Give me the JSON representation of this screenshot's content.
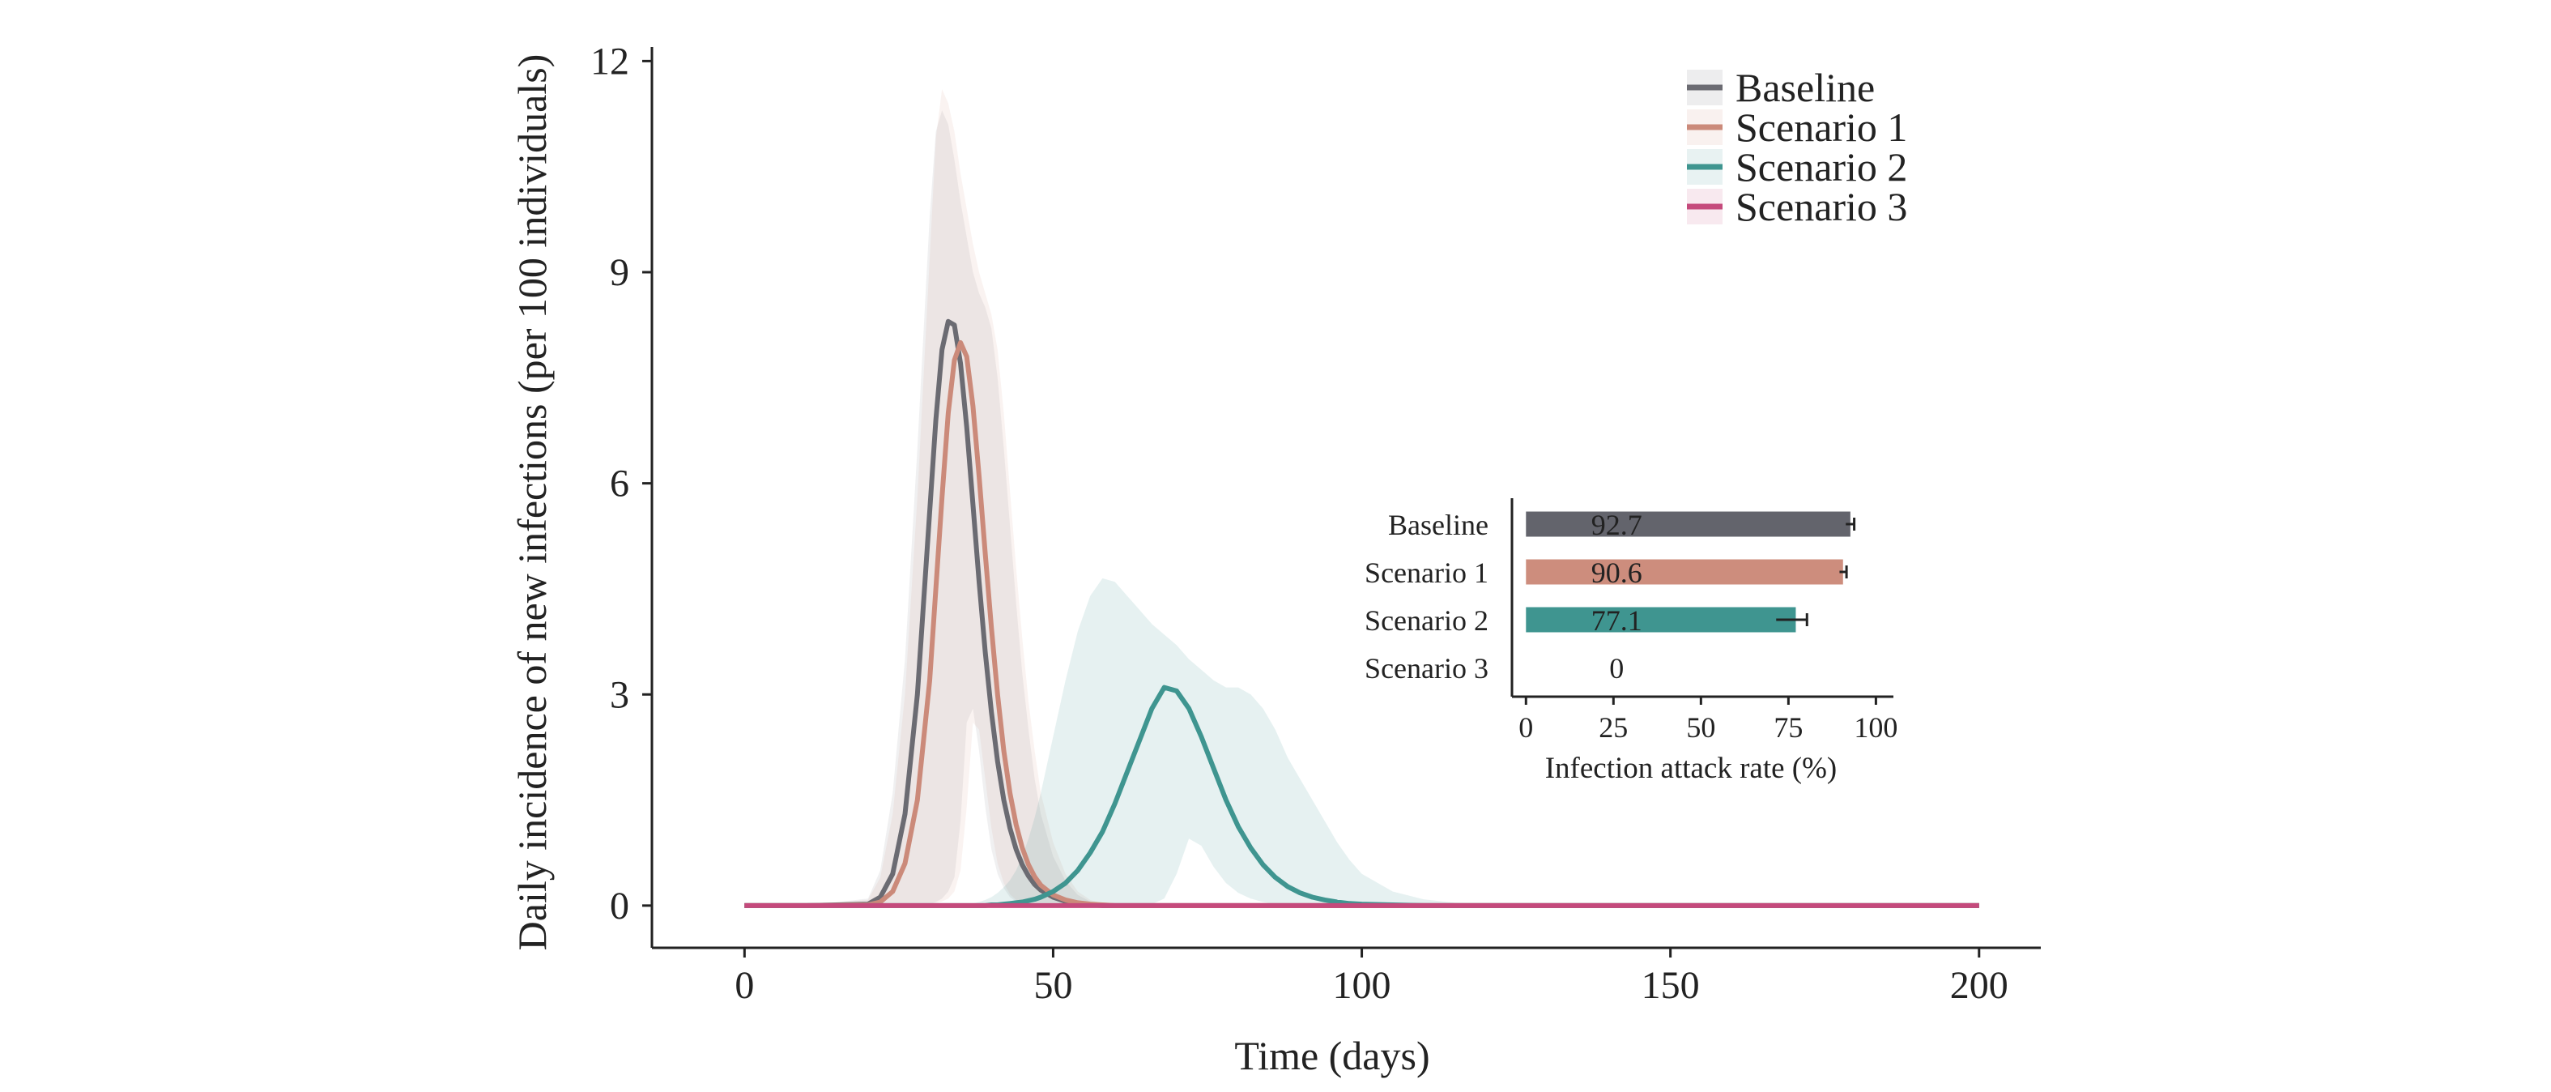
{
  "chart_data": [
    {
      "type": "line",
      "title": "",
      "xlabel": "Time (days)",
      "ylabel": "Daily incidence of new infections (per 100 individuals)",
      "xlim": [
        -15,
        210
      ],
      "ylim": [
        -0.6,
        12.2
      ],
      "xticks": [
        0,
        50,
        100,
        150,
        200
      ],
      "yticks": [
        0,
        3,
        6,
        9,
        12
      ],
      "grid": false,
      "legend": "top-right",
      "x": [
        0,
        10,
        20,
        22,
        24,
        26,
        28,
        30,
        31,
        32,
        33,
        34,
        35,
        36,
        37,
        38,
        39,
        40,
        41,
        42,
        43,
        44,
        45,
        46,
        47,
        48,
        50,
        52,
        54,
        56,
        58,
        60,
        62,
        64,
        66,
        68,
        70,
        72,
        74,
        76,
        78,
        80,
        82,
        84,
        86,
        88,
        90,
        92,
        94,
        96,
        98,
        100,
        105,
        110,
        115,
        120,
        130,
        140,
        160,
        180,
        200
      ],
      "series": [
        {
          "name": "Baseline",
          "color": "#6b6b72",
          "values": [
            0,
            0,
            0.02,
            0.12,
            0.45,
            1.3,
            3.0,
            5.6,
            6.9,
            7.9,
            8.3,
            8.25,
            7.7,
            6.8,
            5.7,
            4.6,
            3.6,
            2.75,
            2.05,
            1.5,
            1.1,
            0.8,
            0.58,
            0.42,
            0.3,
            0.22,
            0.12,
            0.06,
            0.03,
            0.01,
            0,
            0,
            0,
            0,
            0,
            0,
            0,
            0,
            0,
            0,
            0,
            0,
            0,
            0,
            0,
            0,
            0,
            0,
            0,
            0,
            0,
            0,
            0,
            0,
            0,
            0,
            0,
            0,
            0,
            0,
            0
          ],
          "band_upper": [
            0,
            0,
            0.1,
            0.5,
            1.6,
            3.5,
            6.5,
            9.8,
            11.0,
            11.3,
            11.1,
            10.6,
            10.0,
            9.5,
            9.0,
            8.7,
            8.5,
            8.2,
            7.5,
            6.5,
            5.4,
            4.3,
            3.3,
            2.5,
            1.8,
            1.3,
            0.7,
            0.35,
            0.15,
            0.06,
            0.02,
            0,
            0,
            0,
            0,
            0,
            0,
            0,
            0,
            0,
            0,
            0,
            0,
            0,
            0,
            0,
            0,
            0,
            0,
            0,
            0,
            0,
            0,
            0,
            0,
            0,
            0,
            0,
            0,
            0,
            0
          ],
          "band_lower": [
            0,
            0,
            0,
            0,
            0,
            0,
            0,
            0.02,
            0.05,
            0.1,
            0.2,
            0.4,
            1.2,
            2.6,
            2.8,
            2.2,
            1.4,
            0.8,
            0.45,
            0.25,
            0.12,
            0.06,
            0.03,
            0.01,
            0,
            0,
            0,
            0,
            0,
            0,
            0,
            0,
            0,
            0,
            0,
            0,
            0,
            0,
            0,
            0,
            0,
            0,
            0,
            0,
            0,
            0,
            0,
            0,
            0,
            0,
            0,
            0,
            0,
            0,
            0,
            0,
            0,
            0,
            0,
            0,
            0
          ]
        },
        {
          "name": "Scenario 1",
          "color": "#cb8a7a",
          "values": [
            0,
            0,
            0.01,
            0.05,
            0.2,
            0.6,
            1.5,
            3.2,
            4.5,
            5.8,
            7.0,
            7.75,
            8.0,
            7.8,
            7.1,
            6.1,
            5.0,
            3.95,
            3.0,
            2.2,
            1.6,
            1.15,
            0.82,
            0.58,
            0.41,
            0.29,
            0.15,
            0.08,
            0.04,
            0.02,
            0.01,
            0,
            0,
            0,
            0,
            0,
            0,
            0,
            0,
            0,
            0,
            0,
            0,
            0,
            0,
            0,
            0,
            0,
            0,
            0,
            0,
            0,
            0,
            0,
            0,
            0,
            0,
            0,
            0,
            0,
            0
          ],
          "band_upper": [
            0,
            0,
            0.08,
            0.4,
            1.3,
            3.0,
            5.8,
            9.2,
            10.9,
            11.6,
            11.4,
            11.0,
            10.4,
            9.9,
            9.4,
            9.0,
            8.7,
            8.4,
            7.9,
            7.0,
            5.9,
            4.8,
            3.8,
            2.9,
            2.2,
            1.6,
            0.9,
            0.45,
            0.2,
            0.08,
            0.03,
            0.01,
            0,
            0,
            0,
            0,
            0,
            0,
            0,
            0,
            0,
            0,
            0,
            0,
            0,
            0,
            0,
            0,
            0,
            0,
            0,
            0,
            0,
            0,
            0,
            0,
            0,
            0,
            0,
            0,
            0
          ],
          "band_lower": [
            0,
            0,
            0,
            0,
            0,
            0,
            0,
            0.01,
            0.03,
            0.06,
            0.1,
            0.2,
            0.5,
            1.4,
            2.6,
            2.5,
            1.8,
            1.1,
            0.6,
            0.32,
            0.16,
            0.08,
            0.04,
            0.02,
            0.01,
            0,
            0,
            0,
            0,
            0,
            0,
            0,
            0,
            0,
            0,
            0,
            0,
            0,
            0,
            0,
            0,
            0,
            0,
            0,
            0,
            0,
            0,
            0,
            0,
            0,
            0,
            0,
            0,
            0,
            0,
            0,
            0,
            0,
            0,
            0,
            0
          ]
        },
        {
          "name": "Scenario 2",
          "color": "#3f9590",
          "values": [
            0,
            0,
            0,
            0,
            0,
            0,
            0,
            0,
            0,
            0,
            0,
            0,
            0,
            0,
            0,
            0,
            0,
            0.01,
            0.01,
            0.02,
            0.03,
            0.04,
            0.05,
            0.07,
            0.09,
            0.12,
            0.2,
            0.32,
            0.5,
            0.75,
            1.05,
            1.45,
            1.9,
            2.35,
            2.8,
            3.1,
            3.05,
            2.8,
            2.4,
            1.95,
            1.5,
            1.12,
            0.82,
            0.58,
            0.4,
            0.27,
            0.18,
            0.12,
            0.08,
            0.05,
            0.03,
            0.02,
            0.01,
            0,
            0,
            0,
            0,
            0,
            0,
            0,
            0
          ],
          "band_upper": [
            0,
            0,
            0,
            0,
            0,
            0,
            0,
            0,
            0,
            0,
            0,
            0,
            0.01,
            0.02,
            0.03,
            0.05,
            0.08,
            0.12,
            0.18,
            0.26,
            0.36,
            0.5,
            0.7,
            0.95,
            1.25,
            1.6,
            2.4,
            3.2,
            3.9,
            4.4,
            4.65,
            4.6,
            4.4,
            4.2,
            4.0,
            3.85,
            3.7,
            3.5,
            3.35,
            3.2,
            3.1,
            3.1,
            3.0,
            2.8,
            2.5,
            2.1,
            1.8,
            1.5,
            1.2,
            0.9,
            0.65,
            0.45,
            0.2,
            0.09,
            0.04,
            0.02,
            0.01,
            0,
            0,
            0,
            0
          ],
          "band_lower": [
            0,
            0,
            0,
            0,
            0,
            0,
            0,
            0,
            0,
            0,
            0,
            0,
            0,
            0,
            0,
            0,
            0,
            0,
            0,
            0,
            0,
            0,
            0,
            0,
            0,
            0,
            0,
            0,
            0,
            0,
            0,
            0,
            0,
            0,
            0.02,
            0.1,
            0.45,
            0.95,
            0.85,
            0.55,
            0.32,
            0.18,
            0.1,
            0.05,
            0.02,
            0.01,
            0,
            0,
            0,
            0,
            0,
            0,
            0,
            0,
            0,
            0,
            0,
            0,
            0,
            0,
            0
          ]
        },
        {
          "name": "Scenario 3",
          "color": "#c54a7c",
          "values": [
            0,
            0,
            0,
            0,
            0,
            0,
            0,
            0,
            0,
            0,
            0,
            0,
            0,
            0,
            0,
            0,
            0,
            0,
            0,
            0,
            0,
            0,
            0,
            0,
            0,
            0,
            0,
            0,
            0,
            0,
            0,
            0,
            0,
            0,
            0,
            0,
            0,
            0,
            0,
            0,
            0,
            0,
            0,
            0,
            0,
            0,
            0,
            0,
            0,
            0,
            0,
            0,
            0,
            0,
            0,
            0,
            0,
            0,
            0,
            0,
            0
          ]
        }
      ]
    },
    {
      "type": "bar",
      "orientation": "horizontal",
      "title": "",
      "xlabel": "Infection attack rate (%)",
      "ylabel": "",
      "xlim": [
        -4,
        105
      ],
      "xticks": [
        0,
        25,
        50,
        75,
        100
      ],
      "categories": [
        "Baseline",
        "Scenario 1",
        "Scenario 2",
        "Scenario 3"
      ],
      "values": [
        92.7,
        90.6,
        77.1,
        0
      ],
      "value_labels": [
        "92.7",
        "90.6",
        "77.1",
        "0"
      ],
      "error_low": [
        91.4,
        89.6,
        71.5,
        0
      ],
      "error_high": [
        93.8,
        91.6,
        80.3,
        0
      ],
      "colors": [
        "#63646c",
        "#cd8d7d",
        "#3f9590",
        "#f0dce6"
      ]
    }
  ]
}
